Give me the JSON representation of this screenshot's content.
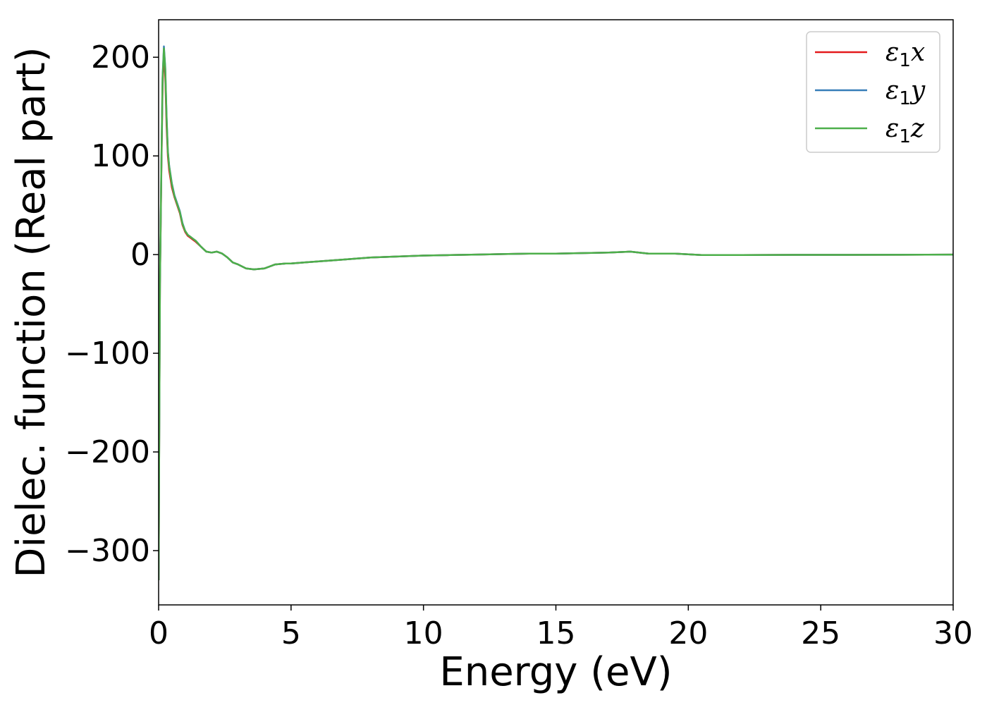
{
  "chart_data": {
    "type": "line",
    "title": "",
    "xlabel": "Energy (eV)",
    "ylabel": "Dielec. function (Real part)",
    "xlim": [
      0,
      30
    ],
    "ylim": [
      -355,
      238
    ],
    "xticks": [
      0,
      5,
      10,
      15,
      20,
      25,
      30
    ],
    "yticks": [
      -300,
      -200,
      -100,
      0,
      100,
      200
    ],
    "ytick_labels": [
      "−300",
      "−200",
      "−100",
      "0",
      "100",
      "200"
    ],
    "xtick_labels": [
      "0",
      "5",
      "10",
      "15",
      "20",
      "25",
      "30"
    ],
    "grid": false,
    "legend_position": "top-right",
    "series": [
      {
        "name": "ε1x",
        "name_base": "ε",
        "name_sub": "1",
        "name_var": "x",
        "color": "#e41a1c",
        "x": [
          0.0,
          0.02,
          0.05,
          0.1,
          0.15,
          0.2,
          0.25,
          0.3,
          0.35,
          0.4,
          0.5,
          0.6,
          0.7,
          0.8,
          0.9,
          1.0,
          1.1,
          1.2,
          1.3,
          1.4,
          1.6,
          1.8,
          2.0,
          2.2,
          2.4,
          2.6,
          2.8,
          3.0,
          3.3,
          3.6,
          4.0,
          4.4,
          4.8,
          5.0,
          5.5,
          6.0,
          6.5,
          7.0,
          8.0,
          9.0,
          10.0,
          11.0,
          12.0,
          13.0,
          14.0,
          15.0,
          16.0,
          17.0,
          17.8,
          18.5,
          19.5,
          20.5,
          22.0,
          24.0,
          26.0,
          28.0,
          30.0
        ],
        "y": [
          -330,
          -200,
          -30,
          80,
          170,
          205,
          180,
          130,
          100,
          85,
          68,
          58,
          50,
          42,
          30,
          23,
          19,
          17,
          15,
          13,
          8,
          3,
          2,
          3,
          1,
          -3,
          -8,
          -10,
          -14,
          -15,
          -14,
          -10,
          -9,
          -9,
          -8,
          -7,
          -6,
          -5,
          -3,
          -2,
          -1,
          -0.5,
          0,
          0.5,
          1,
          1,
          1.5,
          2,
          3,
          1,
          1,
          -0.5,
          -0.5,
          -0.3,
          -0.3,
          -0.2,
          0
        ]
      },
      {
        "name": "ε1y",
        "name_base": "ε",
        "name_sub": "1",
        "name_var": "y",
        "color": "#377eb8",
        "x": [
          0.0,
          0.02,
          0.05,
          0.1,
          0.15,
          0.2,
          0.25,
          0.3,
          0.35,
          0.4,
          0.5,
          0.6,
          0.7,
          0.8,
          0.9,
          1.0,
          1.1,
          1.2,
          1.3,
          1.4,
          1.6,
          1.8,
          2.0,
          2.2,
          2.4,
          2.6,
          2.8,
          3.0,
          3.3,
          3.6,
          4.0,
          4.4,
          4.8,
          5.0,
          5.5,
          6.0,
          6.5,
          7.0,
          8.0,
          9.0,
          10.0,
          11.0,
          12.0,
          13.0,
          14.0,
          15.0,
          16.0,
          17.0,
          17.8,
          18.5,
          19.5,
          20.5,
          22.0,
          24.0,
          26.0,
          28.0,
          30.0
        ],
        "y": [
          -330,
          -200,
          -30,
          85,
          180,
          211,
          190,
          140,
          105,
          90,
          72,
          60,
          52,
          44,
          32,
          24,
          20,
          18,
          16,
          14,
          8,
          3,
          2,
          3,
          1,
          -3,
          -8,
          -10,
          -14,
          -15,
          -14,
          -10,
          -9,
          -9,
          -8,
          -7,
          -6,
          -5,
          -3,
          -2,
          -1,
          -0.5,
          0,
          0.5,
          1,
          1,
          1.5,
          2,
          3,
          1,
          1,
          -0.5,
          -0.5,
          -0.3,
          -0.3,
          -0.2,
          0
        ]
      },
      {
        "name": "ε1z",
        "name_base": "ε",
        "name_sub": "1",
        "name_var": "z",
        "color": "#4daf4a",
        "x": [
          0.0,
          0.02,
          0.05,
          0.1,
          0.15,
          0.2,
          0.25,
          0.3,
          0.35,
          0.4,
          0.5,
          0.6,
          0.7,
          0.8,
          0.9,
          1.0,
          1.1,
          1.2,
          1.3,
          1.4,
          1.6,
          1.8,
          2.0,
          2.2,
          2.4,
          2.6,
          2.8,
          3.0,
          3.3,
          3.6,
          4.0,
          4.4,
          4.8,
          5.0,
          5.5,
          6.0,
          6.5,
          7.0,
          8.0,
          9.0,
          10.0,
          11.0,
          12.0,
          13.0,
          14.0,
          15.0,
          16.0,
          17.0,
          17.8,
          18.5,
          19.5,
          20.5,
          22.0,
          24.0,
          26.0,
          28.0,
          30.0
        ],
        "y": [
          -330,
          -200,
          -30,
          85,
          178,
          209,
          188,
          138,
          104,
          89,
          71,
          59,
          51,
          43,
          31,
          24,
          20,
          18,
          16,
          14,
          8,
          3,
          2,
          3,
          1,
          -3,
          -8,
          -10,
          -14,
          -15,
          -14,
          -10,
          -9,
          -9,
          -8,
          -7,
          -6,
          -5,
          -3,
          -2,
          -1,
          -0.5,
          0,
          0.5,
          1,
          1,
          1.5,
          2,
          3,
          1,
          1,
          -0.5,
          -0.5,
          -0.3,
          -0.3,
          -0.2,
          0
        ]
      }
    ]
  }
}
